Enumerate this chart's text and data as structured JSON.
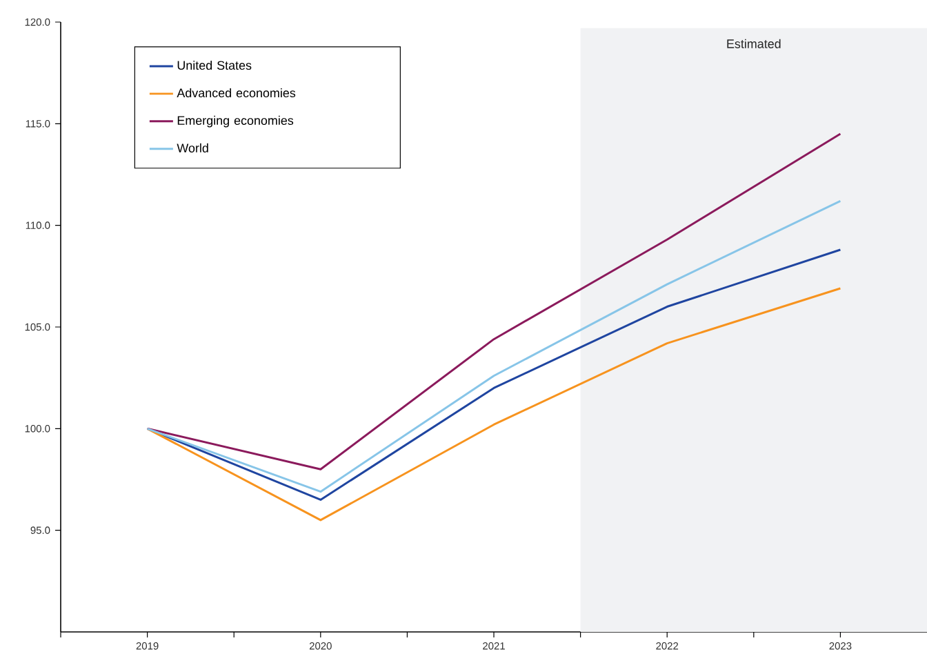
{
  "chart_data": {
    "type": "line",
    "x": [
      2019,
      2020,
      2021,
      2022,
      2023
    ],
    "series": [
      {
        "name": "United States",
        "color": "#1f45a0",
        "values": [
          100,
          96.5,
          102.0,
          106.0,
          108.8
        ]
      },
      {
        "name": "Advanced economies",
        "color": "#f7931e",
        "values": [
          100,
          95.5,
          100.2,
          104.2,
          106.9
        ]
      },
      {
        "name": "Emerging economies",
        "color": "#8b1a5c",
        "values": [
          100,
          98.0,
          104.4,
          109.3,
          114.5
        ]
      },
      {
        "name": "World",
        "color": "#87c5e8",
        "values": [
          100,
          96.9,
          102.6,
          107.1,
          111.2
        ]
      }
    ],
    "xlim": [
      2018.5,
      2023.5
    ],
    "xticks": [
      {
        "value": 2018.5,
        "label": null
      },
      {
        "value": 2019,
        "label": "2019"
      },
      {
        "value": 2019.5,
        "label": null
      },
      {
        "value": 2020,
        "label": "2020"
      },
      {
        "value": 2020.5,
        "label": null
      },
      {
        "value": 2021,
        "label": "2021"
      },
      {
        "value": 2021.5,
        "label": null
      },
      {
        "value": 2022,
        "label": "2022"
      },
      {
        "value": 2022.5,
        "label": null
      },
      {
        "value": 2023,
        "label": "2023"
      }
    ],
    "ylim": [
      90,
      120
    ],
    "yticks": [
      {
        "value": 95,
        "label": "95.0"
      },
      {
        "value": 100,
        "label": "100.0"
      },
      {
        "value": 105,
        "label": "105.0"
      },
      {
        "value": 110,
        "label": "110.0"
      },
      {
        "value": 115,
        "label": "115.0"
      },
      {
        "value": 120,
        "label": "120.0"
      }
    ],
    "bands": [
      {
        "axis": "x",
        "from": 2021.5,
        "to": 2023.5,
        "label": "Estimated",
        "color": "#f1f2f4"
      }
    ],
    "grid": false,
    "legend": "top left",
    "marker": "none",
    "line_style": "solid"
  }
}
